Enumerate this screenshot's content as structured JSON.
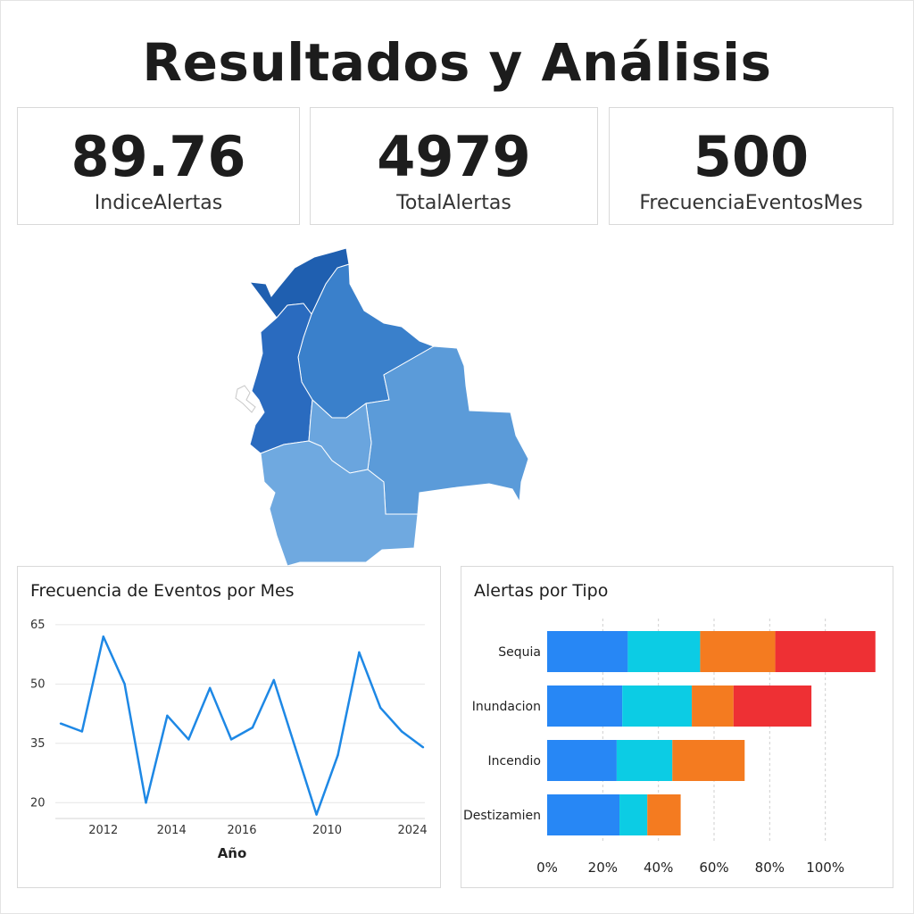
{
  "page": {
    "title": "Resultados y Análisis"
  },
  "kpis": [
    {
      "value": "89.76",
      "label": "IndiceAlertas"
    },
    {
      "value": "4979",
      "label": "TotalAlertas"
    },
    {
      "value": "500",
      "label": "FrecuenciaEventosMes"
    }
  ],
  "map": {
    "regions": [
      {
        "name": "north-west",
        "color": "#1f5fb0"
      },
      {
        "name": "west",
        "color": "#2a6bbf"
      },
      {
        "name": "north-east",
        "color": "#3a80cb"
      },
      {
        "name": "east",
        "color": "#5b9bd9"
      },
      {
        "name": "center",
        "color": "#6aa5de"
      },
      {
        "name": "south",
        "color": "#6fa9e0"
      }
    ]
  },
  "chart_data": [
    {
      "type": "line",
      "title": "Frecuencia de Eventos por Mes",
      "xlabel": "Año",
      "ylabel": "",
      "yticks": [
        20,
        35,
        50,
        65
      ],
      "ylim": [
        16,
        67
      ],
      "xtick_labels": [
        "2012",
        "2014",
        "2016",
        "2010",
        "2024"
      ],
      "xtick_index": [
        2,
        5.2,
        8.5,
        12.5,
        16.5
      ],
      "grid": true,
      "color": "#1e88e5",
      "values": [
        40,
        38,
        62,
        50,
        20,
        42,
        36,
        49,
        36,
        39,
        51,
        34,
        17,
        32,
        58,
        44,
        38,
        34
      ]
    },
    {
      "type": "bar",
      "orientation": "horizontal",
      "stacked": true,
      "title": "Alertas por Tipo",
      "categories": [
        "Sequia",
        "Inundacion",
        "Incendio",
        "Destizamien"
      ],
      "xticks": [
        "0%",
        "20%",
        "40%",
        "60%",
        "80%",
        "100%"
      ],
      "xlim": [
        0,
        120
      ],
      "grid": true,
      "segment_colors": [
        "#2787f5",
        "#0ccce4",
        "#f47b20",
        "#ee3034"
      ],
      "segments": [
        [
          29,
          26,
          27,
          36
        ],
        [
          27,
          25,
          15,
          28
        ],
        [
          25,
          20,
          26,
          0
        ],
        [
          26,
          10,
          12,
          0
        ]
      ]
    }
  ]
}
